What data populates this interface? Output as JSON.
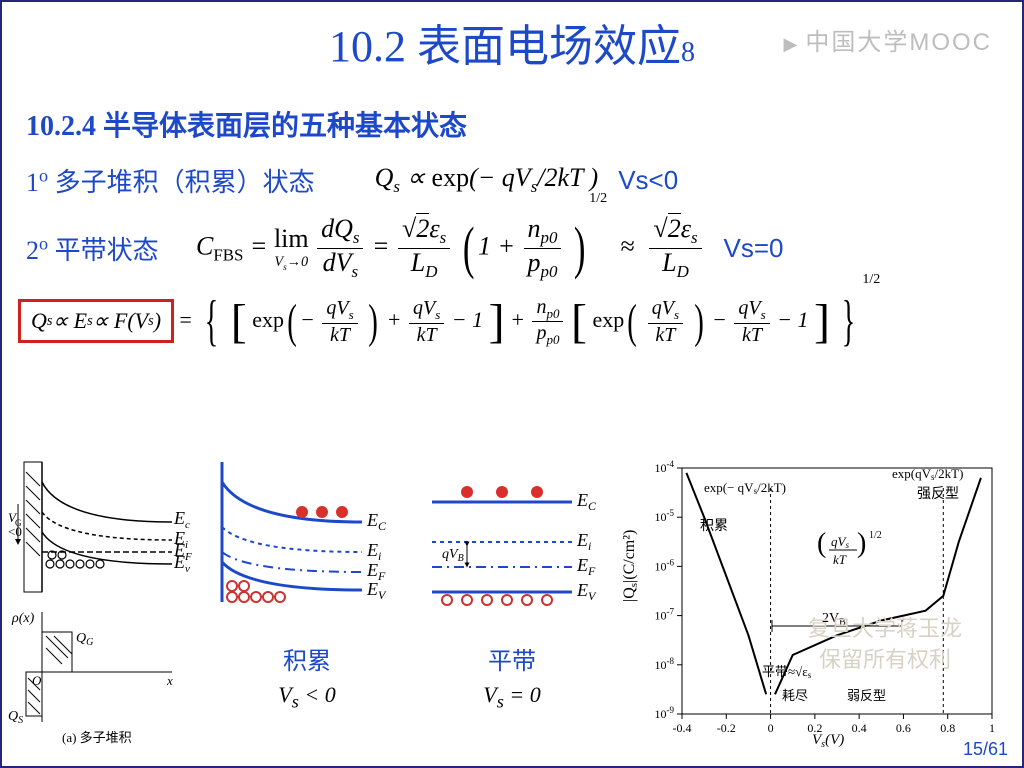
{
  "watermark_top": "中国大学MOOC",
  "title_main": "10.2 表面电场效应",
  "title_sub": "8",
  "section_heading": "10.2.4 半导体表面层的五种基本状态",
  "item1_label": "1° 多子堆积（积累）状态",
  "item1_annot": "Vs<0",
  "item2_label": "2° 平带状态",
  "item2_annot": "Vs=0",
  "accum_caption": "积累",
  "accum_vs": "Vₛ < 0",
  "flat_caption": "平带",
  "flat_vs": "Vₛ = 0",
  "left_fig_caption": "(a) 多子堆积",
  "page_number": "15/61",
  "watermark2_a": "复旦大学蒋玉龙",
  "watermark2_b": "保留所有权利",
  "band_labels": {
    "Ec": "E",
    "Ec_sub": "C",
    "Ei": "E",
    "Ei_sub": "i",
    "Ef": "E",
    "Ef_sub": "F",
    "Ev": "E",
    "Ev_sub": "V"
  },
  "graph": {
    "type": "line",
    "xlabel": "Vₛ(V)",
    "ylabel": "|Qₛ|(C/cm²)",
    "xlim": [
      -0.4,
      1.0
    ],
    "xticks": [
      -0.4,
      -0.2,
      0,
      0.2,
      0.4,
      0.6,
      0.8,
      1.0
    ],
    "ylim_exp": [
      -9,
      -4
    ],
    "yticks_exp": [
      -9,
      -8,
      -7,
      -6,
      -5,
      -4
    ],
    "regions": [
      "积累",
      "平带",
      "耗尽",
      "弱反型",
      "强反型"
    ],
    "region_marks": [
      "≈√εₛ",
      "2V_B"
    ],
    "annot_left": "exp(− qVₛ/2kT)",
    "annot_right": "exp(qVₛ/2kT)",
    "annot_mid": "(qVₛ/kT)^{1/2}",
    "curve_color": "#000000",
    "background_color": "#ffffff",
    "grid_color": "#cccccc",
    "left_branch": [
      [
        -0.38,
        -4.1
      ],
      [
        -0.3,
        -5.0
      ],
      [
        -0.2,
        -6.2
      ],
      [
        -0.1,
        -7.4
      ],
      [
        -0.02,
        -8.6
      ]
    ],
    "right_branch": [
      [
        0.02,
        -8.6
      ],
      [
        0.1,
        -7.8
      ],
      [
        0.3,
        -7.4
      ],
      [
        0.5,
        -7.1
      ],
      [
        0.7,
        -6.9
      ],
      [
        0.78,
        -6.6
      ],
      [
        0.85,
        -5.5
      ],
      [
        0.95,
        -4.2
      ]
    ]
  },
  "colors": {
    "blue": "#1d49c9",
    "red": "#d02020",
    "dark_border": "#26247b",
    "circle_red": "#d8302a",
    "circle_open": "#cc3333"
  },
  "styling": {
    "title_fontsize": 44,
    "section_fontsize": 28,
    "label_fontsize": 26,
    "formula_fontsize": 26,
    "annot_fontsize": 26,
    "diagram_line_width": 2
  }
}
